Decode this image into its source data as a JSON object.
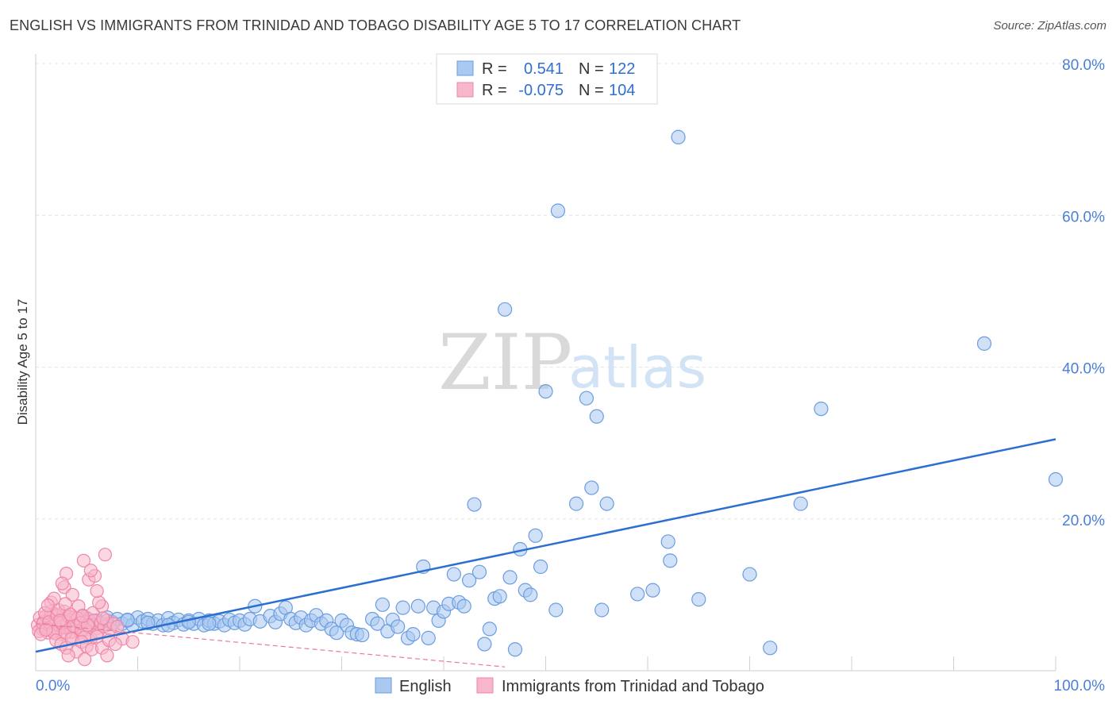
{
  "header": {
    "title": "ENGLISH VS IMMIGRANTS FROM TRINIDAD AND TOBAGO DISABILITY AGE 5 TO 17 CORRELATION CHART",
    "source": "Source: ZipAtlas.com"
  },
  "watermark": {
    "zip": "ZIP",
    "atlas": "atlas"
  },
  "legend": {
    "rows": [
      {
        "r_label": "R =",
        "r_value": "0.541",
        "n_label": "N =",
        "n_value": "122"
      },
      {
        "r_label": "R =",
        "r_value": "-0.075",
        "n_label": "N =",
        "n_value": "104"
      }
    ]
  },
  "bottom_legend": {
    "english": "English",
    "immigrants": "Immigrants from Trinidad and Tobago"
  },
  "colors": {
    "english_fill": "#aac8f0",
    "english_stroke": "#6a9de0",
    "english_line": "#2b6fd1",
    "immigrant_fill": "#f7b6ca",
    "immigrant_stroke": "#ee86a8",
    "immigrant_line": "#e77a9c",
    "grid": "#e3e3e3",
    "tick": "#4a7fd6"
  },
  "chart_data": {
    "type": "scatter",
    "title": "ENGLISH VS IMMIGRANTS FROM TRINIDAD AND TOBAGO DISABILITY AGE 5 TO 17 CORRELATION CHART",
    "xlabel": "",
    "ylabel": "Disability Age 5 to 17",
    "xlim": [
      0,
      100
    ],
    "ylim": [
      0,
      80
    ],
    "x_tick_labels": [
      "0.0%",
      "100.0%"
    ],
    "y_ticks": [
      20,
      40,
      60,
      80
    ],
    "y_tick_labels": [
      "20.0%",
      "40.0%",
      "60.0%",
      "80.0%"
    ],
    "legend_position": "top-center",
    "series": [
      {
        "name": "English",
        "R": 0.541,
        "N": 122,
        "trend": {
          "x": [
            0,
            100
          ],
          "y": [
            2.5,
            30.5
          ]
        },
        "points": [
          [
            1.0,
            6.5
          ],
          [
            1.5,
            6.0
          ],
          [
            2.0,
            7.0
          ],
          [
            2.5,
            6.2
          ],
          [
            3.0,
            6.8
          ],
          [
            3.5,
            6.0
          ],
          [
            4.0,
            6.5
          ],
          [
            4.5,
            6.3
          ],
          [
            5.0,
            6.9
          ],
          [
            5.5,
            6.1
          ],
          [
            6.0,
            6.6
          ],
          [
            6.5,
            6.0
          ],
          [
            7.0,
            7.0
          ],
          [
            7.5,
            6.4
          ],
          [
            8.0,
            6.8
          ],
          [
            8.5,
            6.2
          ],
          [
            9.0,
            6.6
          ],
          [
            9.5,
            6.0
          ],
          [
            10.0,
            7.0
          ],
          [
            10.5,
            6.5
          ],
          [
            11.0,
            6.8
          ],
          [
            11.5,
            6.2
          ],
          [
            12.0,
            6.6
          ],
          [
            12.5,
            6.0
          ],
          [
            13.0,
            6.9
          ],
          [
            13.5,
            6.3
          ],
          [
            14.0,
            6.7
          ],
          [
            14.5,
            6.1
          ],
          [
            15.0,
            6.6
          ],
          [
            15.5,
            6.2
          ],
          [
            16.0,
            6.8
          ],
          [
            16.5,
            6.0
          ],
          [
            17.0,
            6.6
          ],
          [
            17.5,
            6.2
          ],
          [
            18.0,
            6.5
          ],
          [
            18.5,
            6.0
          ],
          [
            19.0,
            6.7
          ],
          [
            19.5,
            6.3
          ],
          [
            20.0,
            6.6
          ],
          [
            20.5,
            6.1
          ],
          [
            3.0,
            6.2
          ],
          [
            5.0,
            6.4
          ],
          [
            7.0,
            6.1
          ],
          [
            9.0,
            6.7
          ],
          [
            11.0,
            6.3
          ],
          [
            13.0,
            6.0
          ],
          [
            15.0,
            6.4
          ],
          [
            17.0,
            6.2
          ],
          [
            21.0,
            6.8
          ],
          [
            21.5,
            8.5
          ],
          [
            22.0,
            6.5
          ],
          [
            23.0,
            7.2
          ],
          [
            23.5,
            6.4
          ],
          [
            24.0,
            7.5
          ],
          [
            24.5,
            8.3
          ],
          [
            25.0,
            6.8
          ],
          [
            25.5,
            6.3
          ],
          [
            26.0,
            7.0
          ],
          [
            26.5,
            6.0
          ],
          [
            27.0,
            6.6
          ],
          [
            27.5,
            7.3
          ],
          [
            28.0,
            6.2
          ],
          [
            28.5,
            6.6
          ],
          [
            29.0,
            5.5
          ],
          [
            29.5,
            5.0
          ],
          [
            30.0,
            6.6
          ],
          [
            30.5,
            6.0
          ],
          [
            31.0,
            5.0
          ],
          [
            31.5,
            4.8
          ],
          [
            32.0,
            4.7
          ],
          [
            33.0,
            6.8
          ],
          [
            33.5,
            6.2
          ],
          [
            34.0,
            8.7
          ],
          [
            34.5,
            5.2
          ],
          [
            35.0,
            6.7
          ],
          [
            35.5,
            5.8
          ],
          [
            36.0,
            8.3
          ],
          [
            36.5,
            4.3
          ],
          [
            37.0,
            4.8
          ],
          [
            37.5,
            8.5
          ],
          [
            38.0,
            13.7
          ],
          [
            38.5,
            4.3
          ],
          [
            39.0,
            8.3
          ],
          [
            39.5,
            6.6
          ],
          [
            40.0,
            7.8
          ],
          [
            40.5,
            8.8
          ],
          [
            41.0,
            12.7
          ],
          [
            41.5,
            9.0
          ],
          [
            42.0,
            8.5
          ],
          [
            42.5,
            11.9
          ],
          [
            43.0,
            21.9
          ],
          [
            43.5,
            13.0
          ],
          [
            44.0,
            3.5
          ],
          [
            44.5,
            5.5
          ],
          [
            45.0,
            9.5
          ],
          [
            45.5,
            9.8
          ],
          [
            46.0,
            47.6
          ],
          [
            46.5,
            12.3
          ],
          [
            47.0,
            2.8
          ],
          [
            47.5,
            16.0
          ],
          [
            48.0,
            10.6
          ],
          [
            48.5,
            10.0
          ],
          [
            49.0,
            17.8
          ],
          [
            49.5,
            13.7
          ],
          [
            50.0,
            36.8
          ],
          [
            51.0,
            8.0
          ],
          [
            51.2,
            60.6
          ],
          [
            53.0,
            22.0
          ],
          [
            54.0,
            35.9
          ],
          [
            54.5,
            24.1
          ],
          [
            55.0,
            33.5
          ],
          [
            55.5,
            8.0
          ],
          [
            56.0,
            22.0
          ],
          [
            59.0,
            10.1
          ],
          [
            60.5,
            10.6
          ],
          [
            62.0,
            17.0
          ],
          [
            62.2,
            14.5
          ],
          [
            63.0,
            70.3
          ],
          [
            65.0,
            9.4
          ],
          [
            70.0,
            12.7
          ],
          [
            72.0,
            3.0
          ],
          [
            75.0,
            22.0
          ],
          [
            77.0,
            34.5
          ],
          [
            93.0,
            43.1
          ],
          [
            100.0,
            25.2
          ]
        ]
      },
      {
        "name": "Immigrants from Trinidad and Tobago",
        "R": -0.075,
        "N": 104,
        "trend": {
          "x": [
            0,
            46
          ],
          "y": [
            6.2,
            0.5
          ]
        },
        "points": [
          [
            0.2,
            6.0
          ],
          [
            0.4,
            7.0
          ],
          [
            0.6,
            5.5
          ],
          [
            0.8,
            6.5
          ],
          [
            1.0,
            7.2
          ],
          [
            1.2,
            5.0
          ],
          [
            1.4,
            6.8
          ],
          [
            1.6,
            5.8
          ],
          [
            1.8,
            7.5
          ],
          [
            2.0,
            6.2
          ],
          [
            2.2,
            5.3
          ],
          [
            2.4,
            6.9
          ],
          [
            2.6,
            4.8
          ],
          [
            2.8,
            7.8
          ],
          [
            3.0,
            6.0
          ],
          [
            3.2,
            5.5
          ],
          [
            3.4,
            6.7
          ],
          [
            3.6,
            4.5
          ],
          [
            3.8,
            7.0
          ],
          [
            4.0,
            5.8
          ],
          [
            4.2,
            6.3
          ],
          [
            4.4,
            5.0
          ],
          [
            4.6,
            7.3
          ],
          [
            4.8,
            6.0
          ],
          [
            5.0,
            5.4
          ],
          [
            5.2,
            6.8
          ],
          [
            5.4,
            4.2
          ],
          [
            5.6,
            7.6
          ],
          [
            5.8,
            6.1
          ],
          [
            6.0,
            5.6
          ],
          [
            0.3,
            5.2
          ],
          [
            0.7,
            6.2
          ],
          [
            1.1,
            5.6
          ],
          [
            1.5,
            7.8
          ],
          [
            1.9,
            4.9
          ],
          [
            2.3,
            6.0
          ],
          [
            2.7,
            5.7
          ],
          [
            3.1,
            6.4
          ],
          [
            3.5,
            5.1
          ],
          [
            3.9,
            6.6
          ],
          [
            0.5,
            4.8
          ],
          [
            0.9,
            7.6
          ],
          [
            1.3,
            6.4
          ],
          [
            1.7,
            5.1
          ],
          [
            2.1,
            7.3
          ],
          [
            2.5,
            6.3
          ],
          [
            2.9,
            5.0
          ],
          [
            3.3,
            7.1
          ],
          [
            3.7,
            5.9
          ],
          [
            4.1,
            6.9
          ],
          [
            4.5,
            5.3
          ],
          [
            4.9,
            6.4
          ],
          [
            5.3,
            5.7
          ],
          [
            5.7,
            6.6
          ],
          [
            6.1,
            5.1
          ],
          [
            6.4,
            6.3
          ],
          [
            6.7,
            5.8
          ],
          [
            7.0,
            6.6
          ],
          [
            7.3,
            5.5
          ],
          [
            7.6,
            6.2
          ],
          [
            8.0,
            5.8
          ],
          [
            4.4,
            6.3
          ],
          [
            4.8,
            4.4
          ],
          [
            5.1,
            6.0
          ],
          [
            2.0,
            4.0
          ],
          [
            2.5,
            3.5
          ],
          [
            3.0,
            3.0
          ],
          [
            3.5,
            4.2
          ],
          [
            4.0,
            2.5
          ],
          [
            4.5,
            3.8
          ],
          [
            5.0,
            3.2
          ],
          [
            5.5,
            2.8
          ],
          [
            6.0,
            4.5
          ],
          [
            3.2,
            2.0
          ],
          [
            4.8,
            1.5
          ],
          [
            6.5,
            3.0
          ],
          [
            7.0,
            2.0
          ],
          [
            1.5,
            9.0
          ],
          [
            2.2,
            8.0
          ],
          [
            2.8,
            11.0
          ],
          [
            3.6,
            10.0
          ],
          [
            4.2,
            8.5
          ],
          [
            1.8,
            9.5
          ],
          [
            5.2,
            12.0
          ],
          [
            5.8,
            12.5
          ],
          [
            6.5,
            8.5
          ],
          [
            3.0,
            12.8
          ],
          [
            2.6,
            11.5
          ],
          [
            6.2,
            9.0
          ],
          [
            1.2,
            8.6
          ],
          [
            4.7,
            14.5
          ],
          [
            6.8,
            15.3
          ],
          [
            5.4,
            13.2
          ],
          [
            2.9,
            8.8
          ],
          [
            6.0,
            10.5
          ],
          [
            7.2,
            4.0
          ],
          [
            8.5,
            4.2
          ],
          [
            9.5,
            3.8
          ],
          [
            7.8,
            3.5
          ],
          [
            2.4,
            6.6
          ],
          [
            3.4,
            7.4
          ],
          [
            4.6,
            7.2
          ],
          [
            1.0,
            5.4
          ],
          [
            6.6,
            6.9
          ]
        ]
      }
    ]
  }
}
